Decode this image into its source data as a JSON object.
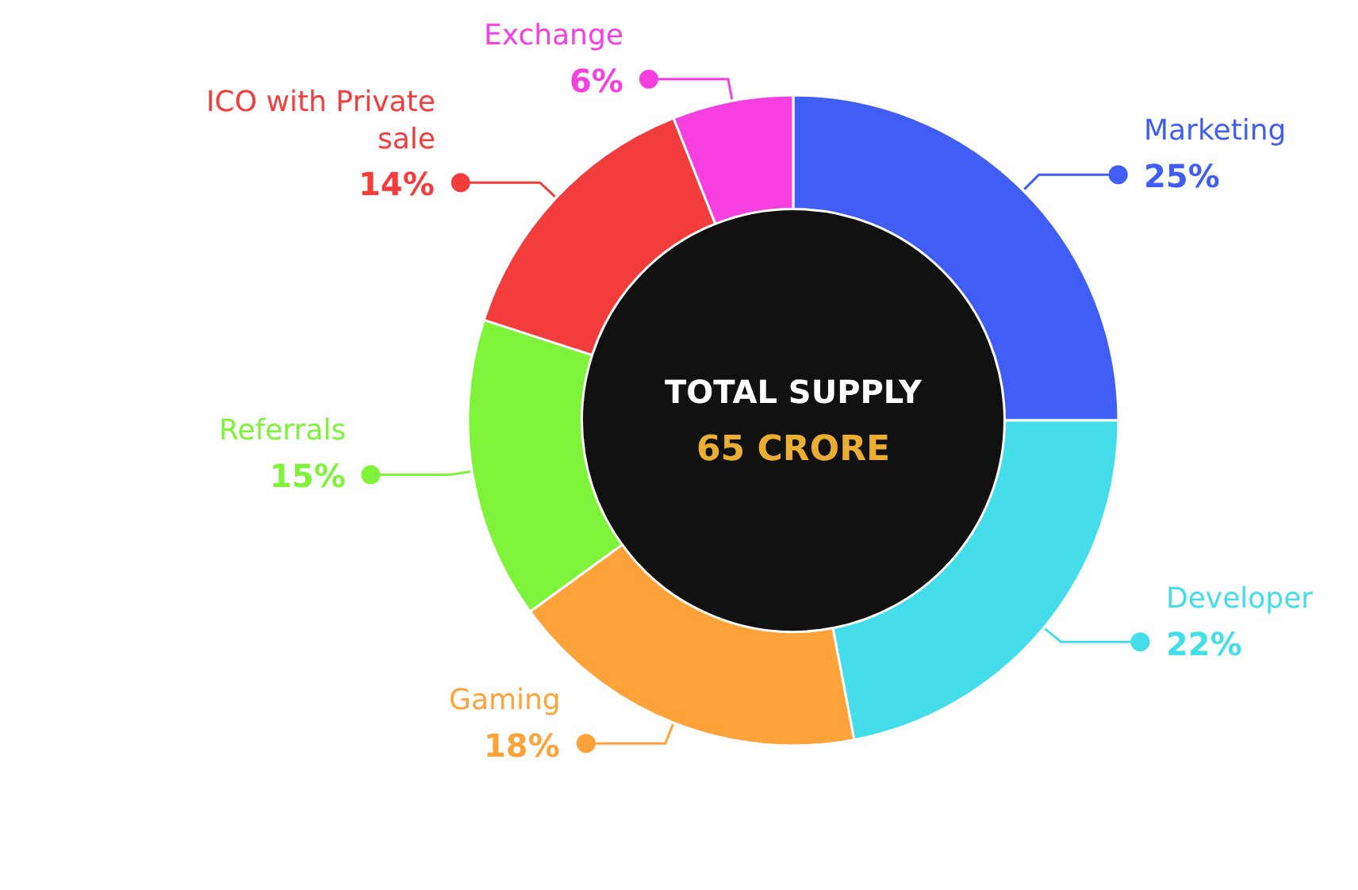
{
  "chart_data": {
    "type": "donut",
    "categories": [
      "Marketing",
      "Developer",
      "Gaming",
      "Referrals",
      "ICO with Private sale",
      "Exchange"
    ],
    "values": [
      25,
      22,
      18,
      15,
      14,
      6
    ],
    "colors": [
      "#405ef5",
      "#45dde9",
      "#fea23a",
      "#7ff23a",
      "#f33c3c",
      "#f63fe0"
    ],
    "value_labels": [
      "25%",
      "22%",
      "18%",
      "15%",
      "14%",
      "6%"
    ],
    "annotations": [
      "TOTAL SUPPLY",
      "65 CRORE"
    ]
  }
}
